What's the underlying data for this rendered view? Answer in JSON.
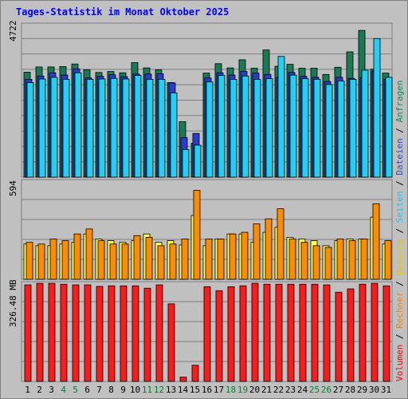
{
  "title": "Tages-Statistik im Monat Oktober 2025",
  "axis_labels": {
    "top_max": "4722",
    "mid_max": "594",
    "bottom_max": "326.48 MB"
  },
  "right_legend": {
    "upper": [
      {
        "text": "Anfragen",
        "color": "#0b8a5a"
      },
      {
        "text": "Dateien",
        "color": "#2a4bd8"
      },
      {
        "text": "Seiten",
        "color": "#20c8f0"
      },
      {
        "text": "Besuche",
        "color": "#e8c800"
      },
      {
        "text": "Rechner",
        "color": "#ff8000"
      },
      {
        "text": "Volumen",
        "color": "#ff0000"
      }
    ],
    "separator": " / "
  },
  "colors": {
    "background": "#c0c0c0",
    "frame": "#808080",
    "title": "#0000ff",
    "grid": "#808080",
    "hits": "#1a7a55",
    "files": "#2a3ccf",
    "pages": "#22d0f5",
    "visits": "#ffff55",
    "sites": "#ff8c00",
    "kbytes": "#ff1a1a",
    "weekend_label": "#0a7a3a",
    "weekday_label": "#000000"
  },
  "chart_data": [
    {
      "type": "bar",
      "title": "Tages-Statistik im Monat Oktober 2025",
      "ylim": [
        0,
        4722
      ],
      "ylabel": "4722",
      "categories": [
        "1",
        "2",
        "3",
        "4",
        "5",
        "6",
        "7",
        "8",
        "9",
        "10",
        "11",
        "12",
        "13",
        "14",
        "15",
        "16",
        "17",
        "18",
        "19",
        "20",
        "21",
        "22",
        "23",
        "24",
        "25",
        "26",
        "27",
        "28",
        "29",
        "30",
        "31"
      ],
      "weekend_days": [
        "4",
        "5",
        "11",
        "12",
        "18",
        "19",
        "25",
        "26"
      ],
      "series": [
        {
          "name": "Anfragen",
          "values": [
            3220,
            3380,
            3380,
            3390,
            3470,
            3290,
            3210,
            3240,
            3200,
            3510,
            3350,
            3290,
            2900,
            1700,
            1040,
            3190,
            3480,
            3350,
            3600,
            3340,
            3900,
            3400,
            3460,
            3340,
            3340,
            3150,
            3370,
            3840,
            4500,
            3310,
            3190
          ]
        },
        {
          "name": "Dateien",
          "values": [
            3000,
            3100,
            3200,
            3130,
            3320,
            3040,
            3090,
            3140,
            3080,
            3160,
            3160,
            3170,
            2890,
            1210,
            1340,
            3040,
            3200,
            3130,
            3240,
            3190,
            3150,
            3060,
            3210,
            3090,
            3060,
            2930,
            3060,
            3030,
            3050,
            3260,
            3000
          ]
        },
        {
          "name": "Seiten",
          "values": [
            2900,
            3010,
            3060,
            3000,
            3200,
            3000,
            3010,
            3030,
            3010,
            3120,
            3000,
            3000,
            2580,
            850,
            980,
            2920,
            3120,
            3000,
            3100,
            3000,
            3020,
            3700,
            3130,
            3020,
            3000,
            2840,
            2950,
            3000,
            3280,
            4250,
            3060
          ]
        }
      ]
    },
    {
      "type": "bar",
      "ylim": [
        0,
        594
      ],
      "ylabel": "594",
      "categories": [
        "1",
        "2",
        "3",
        "4",
        "5",
        "6",
        "7",
        "8",
        "9",
        "10",
        "11",
        "12",
        "13",
        "14",
        "15",
        "16",
        "17",
        "18",
        "19",
        "20",
        "21",
        "22",
        "23",
        "24",
        "25",
        "26",
        "27",
        "28",
        "29",
        "30",
        "31"
      ],
      "series": [
        {
          "name": "Besuche",
          "values": [
            210,
            200,
            200,
            210,
            220,
            270,
            240,
            230,
            220,
            230,
            270,
            220,
            230,
            205,
            380,
            200,
            240,
            270,
            270,
            220,
            280,
            310,
            250,
            240,
            230,
            200,
            230,
            240,
            240,
            370,
            210
          ]
        },
        {
          "name": "Rechner",
          "values": [
            220,
            210,
            240,
            230,
            270,
            300,
            230,
            210,
            210,
            260,
            250,
            200,
            210,
            240,
            530,
            240,
            240,
            270,
            280,
            330,
            360,
            420,
            240,
            220,
            200,
            190,
            240,
            230,
            240,
            450,
            230
          ]
        }
      ]
    },
    {
      "type": "bar",
      "ylim": [
        0,
        326.48
      ],
      "ylabel": "326.48 MB",
      "categories": [
        "1",
        "2",
        "3",
        "4",
        "5",
        "6",
        "7",
        "8",
        "9",
        "10",
        "11",
        "12",
        "13",
        "14",
        "15",
        "16",
        "17",
        "18",
        "19",
        "20",
        "21",
        "22",
        "23",
        "24",
        "25",
        "26",
        "27",
        "28",
        "29",
        "30",
        "31"
      ],
      "series": [
        {
          "name": "Volumen",
          "values": [
            316,
            321,
            321,
            318,
            316,
            316,
            311,
            313,
            313,
            313,
            305,
            316,
            254,
            14,
            53,
            310,
            297,
            310,
            313,
            321,
            318,
            318,
            318,
            318,
            318,
            316,
            292,
            303,
            318,
            321,
            313
          ]
        }
      ]
    }
  ]
}
